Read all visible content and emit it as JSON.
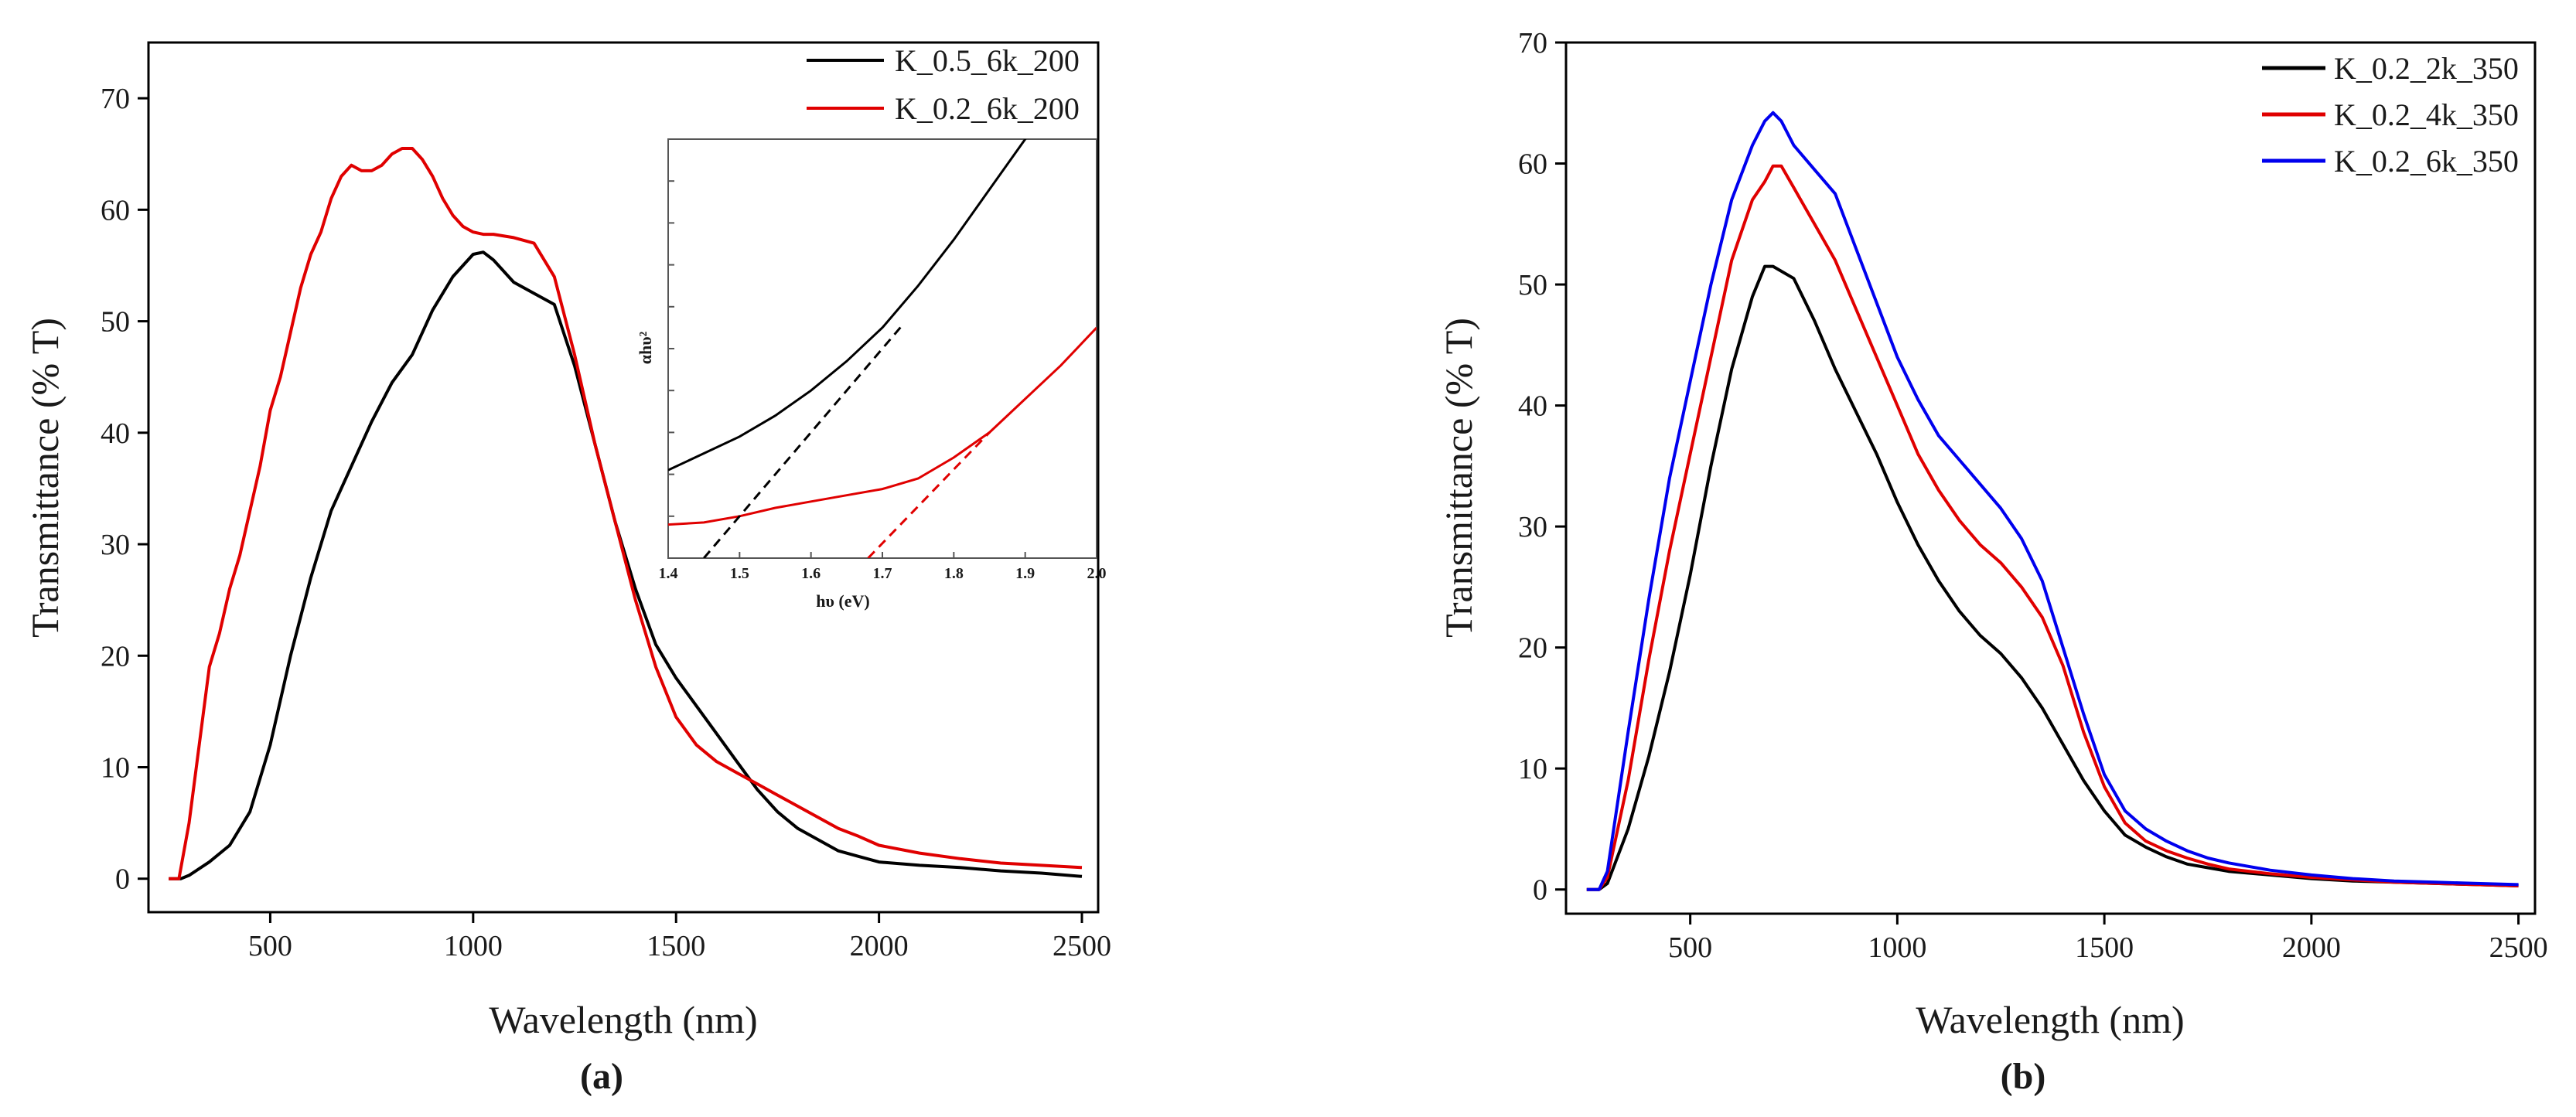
{
  "chart_data": [
    {
      "type": "line",
      "panel_label": "(a)",
      "xlabel": "Wavelength (nm)",
      "ylabel": "Transmittance (% T)",
      "xlim": [
        200,
        2540
      ],
      "ylim": [
        -3,
        75
      ],
      "xticks": [
        500,
        1000,
        1500,
        2000,
        2500
      ],
      "yticks": [
        0,
        10,
        20,
        30,
        40,
        50,
        60,
        70
      ],
      "legend_position": "top-right",
      "series": [
        {
          "name": "K_0.5_6k_200",
          "color": "#000000",
          "x": [
            250,
            280,
            300,
            350,
            400,
            450,
            500,
            550,
            600,
            650,
            700,
            750,
            800,
            850,
            900,
            950,
            1000,
            1025,
            1050,
            1100,
            1150,
            1200,
            1250,
            1300,
            1350,
            1400,
            1450,
            1500,
            1550,
            1600,
            1650,
            1700,
            1750,
            1800,
            1850,
            1900,
            1950,
            2000,
            2100,
            2200,
            2300,
            2400,
            2500
          ],
          "y": [
            0,
            0,
            0.3,
            1.5,
            3,
            6,
            12,
            20,
            27,
            33,
            37,
            41,
            44.5,
            47,
            51,
            54,
            56,
            56.2,
            55.5,
            53.5,
            52.5,
            51.5,
            46,
            39,
            32,
            26,
            21,
            18,
            15.5,
            13,
            10.5,
            8,
            6,
            4.5,
            3.5,
            2.5,
            2,
            1.5,
            1.2,
            1,
            0.7,
            0.5,
            0.2
          ]
        },
        {
          "name": "K_0.2_6k_200",
          "color": "#e00000",
          "x": [
            250,
            275,
            300,
            325,
            350,
            375,
            400,
            425,
            450,
            475,
            500,
            525,
            550,
            575,
            600,
            625,
            650,
            675,
            700,
            725,
            750,
            775,
            800,
            825,
            850,
            875,
            900,
            925,
            950,
            975,
            1000,
            1025,
            1050,
            1100,
            1150,
            1200,
            1250,
            1300,
            1350,
            1400,
            1450,
            1500,
            1550,
            1600,
            1650,
            1700,
            1750,
            1800,
            1850,
            1900,
            1950,
            2000,
            2100,
            2200,
            2300,
            2400,
            2500
          ],
          "y": [
            0,
            0,
            5,
            12,
            19,
            22,
            26,
            29,
            33,
            37,
            42,
            45,
            49,
            53,
            56,
            58,
            61,
            63,
            64,
            63.5,
            63.5,
            64,
            65,
            65.5,
            65.5,
            64.5,
            63,
            61,
            59.5,
            58.5,
            58,
            57.8,
            57.8,
            57.5,
            57,
            54,
            47,
            39,
            32,
            25,
            19,
            14.5,
            12,
            10.5,
            9.5,
            8.5,
            7.5,
            6.5,
            5.5,
            4.5,
            3.8,
            3,
            2.3,
            1.8,
            1.4,
            1.2,
            1
          ]
        }
      ],
      "inset": {
        "xlabel": "hυ (eV)",
        "ylabel": "αhυ²",
        "xlim": [
          1.4,
          2.0
        ],
        "ylim": [
          0,
          1
        ],
        "xticks": [
          "1.4",
          "1.5",
          "1.6",
          "1.7",
          "1.8",
          "1.9",
          "2.0"
        ],
        "series": [
          {
            "name": "K_0.5_6k_200",
            "color": "#000000",
            "x": [
              1.4,
              1.45,
              1.5,
              1.55,
              1.6,
              1.65,
              1.7,
              1.75,
              1.8,
              1.85,
              1.9,
              1.93
            ],
            "y": [
              0.21,
              0.25,
              0.29,
              0.34,
              0.4,
              0.47,
              0.55,
              0.65,
              0.76,
              0.88,
              1.0,
              1.08
            ]
          },
          {
            "name": "K_0.2_6k_200",
            "color": "#e00000",
            "x": [
              1.4,
              1.45,
              1.5,
              1.55,
              1.6,
              1.65,
              1.7,
              1.75,
              1.8,
              1.85,
              1.9,
              1.95,
              2.0
            ],
            "y": [
              0.08,
              0.085,
              0.1,
              0.12,
              0.135,
              0.15,
              0.165,
              0.19,
              0.24,
              0.3,
              0.38,
              0.46,
              0.55
            ]
          }
        ],
        "tangents": [
          {
            "color": "#000000",
            "x": [
              1.45,
              1.73
            ],
            "y": [
              0,
              0.56
            ]
          },
          {
            "color": "#e00000",
            "x": [
              1.68,
              1.85
            ],
            "y": [
              0,
              0.3
            ]
          }
        ]
      }
    },
    {
      "type": "line",
      "panel_label": "(b)",
      "xlabel": "Wavelength (nm)",
      "ylabel": "Transmittance (% T)",
      "xlim": [
        200,
        2540
      ],
      "ylim": [
        -2,
        70
      ],
      "xticks": [
        500,
        1000,
        1500,
        2000,
        2500
      ],
      "yticks": [
        0,
        10,
        20,
        30,
        40,
        50,
        60,
        70
      ],
      "legend_position": "top-right",
      "series": [
        {
          "name": "K_0.2_2k_350",
          "color": "#000000",
          "x": [
            250,
            280,
            300,
            350,
            400,
            450,
            500,
            550,
            600,
            650,
            680,
            700,
            750,
            800,
            850,
            900,
            950,
            1000,
            1050,
            1100,
            1150,
            1200,
            1250,
            1300,
            1350,
            1400,
            1450,
            1500,
            1550,
            1600,
            1650,
            1700,
            1750,
            1800,
            1900,
            2000,
            2100,
            2200,
            2300,
            2400,
            2500
          ],
          "y": [
            0,
            0,
            0.5,
            5,
            11,
            18,
            26,
            35,
            43,
            49,
            51.5,
            51.5,
            50.5,
            47,
            43,
            39.5,
            36,
            32,
            28.5,
            25.5,
            23,
            21,
            19.5,
            17.5,
            15,
            12,
            9,
            6.5,
            4.5,
            3.5,
            2.7,
            2.1,
            1.8,
            1.5,
            1.2,
            0.9,
            0.7,
            0.6,
            0.5,
            0.4,
            0.3
          ]
        },
        {
          "name": "K_0.2_4k_350",
          "color": "#e00000",
          "x": [
            250,
            280,
            300,
            350,
            400,
            450,
            500,
            550,
            600,
            650,
            680,
            700,
            720,
            750,
            800,
            850,
            900,
            950,
            1000,
            1050,
            1100,
            1150,
            1200,
            1250,
            1300,
            1350,
            1400,
            1450,
            1500,
            1550,
            1600,
            1650,
            1700,
            1750,
            1800,
            1900,
            2000,
            2100,
            2200,
            2300,
            2400,
            2500
          ],
          "y": [
            0,
            0,
            1,
            9,
            19,
            28,
            36,
            44,
            52,
            57,
            58.5,
            59.8,
            59.8,
            58,
            55,
            52,
            48,
            44,
            40,
            36,
            33,
            30.5,
            28.5,
            27,
            25,
            22.5,
            18.5,
            13,
            8.5,
            5.5,
            4,
            3.2,
            2.6,
            2.1,
            1.7,
            1.3,
            1,
            0.8,
            0.6,
            0.5,
            0.4,
            0.3
          ]
        },
        {
          "name": "K_0.2_6k_350",
          "color": "#0000ee",
          "x": [
            250,
            280,
            300,
            350,
            400,
            450,
            500,
            550,
            600,
            650,
            680,
            700,
            720,
            750,
            800,
            850,
            900,
            950,
            1000,
            1050,
            1100,
            1150,
            1200,
            1250,
            1300,
            1350,
            1400,
            1450,
            1500,
            1550,
            1600,
            1650,
            1700,
            1750,
            1800,
            1900,
            2000,
            2100,
            2200,
            2300,
            2400,
            2500
          ],
          "y": [
            0,
            0,
            1.5,
            13,
            24,
            34,
            42,
            50,
            57,
            61.5,
            63.5,
            64.2,
            63.5,
            61.5,
            59.5,
            57.5,
            53,
            48.5,
            44,
            40.5,
            37.5,
            35.5,
            33.5,
            31.5,
            29,
            25.5,
            20,
            14.5,
            9.5,
            6.5,
            5,
            4,
            3.2,
            2.6,
            2.2,
            1.6,
            1.2,
            0.9,
            0.7,
            0.6,
            0.5,
            0.4
          ]
        }
      ]
    }
  ]
}
